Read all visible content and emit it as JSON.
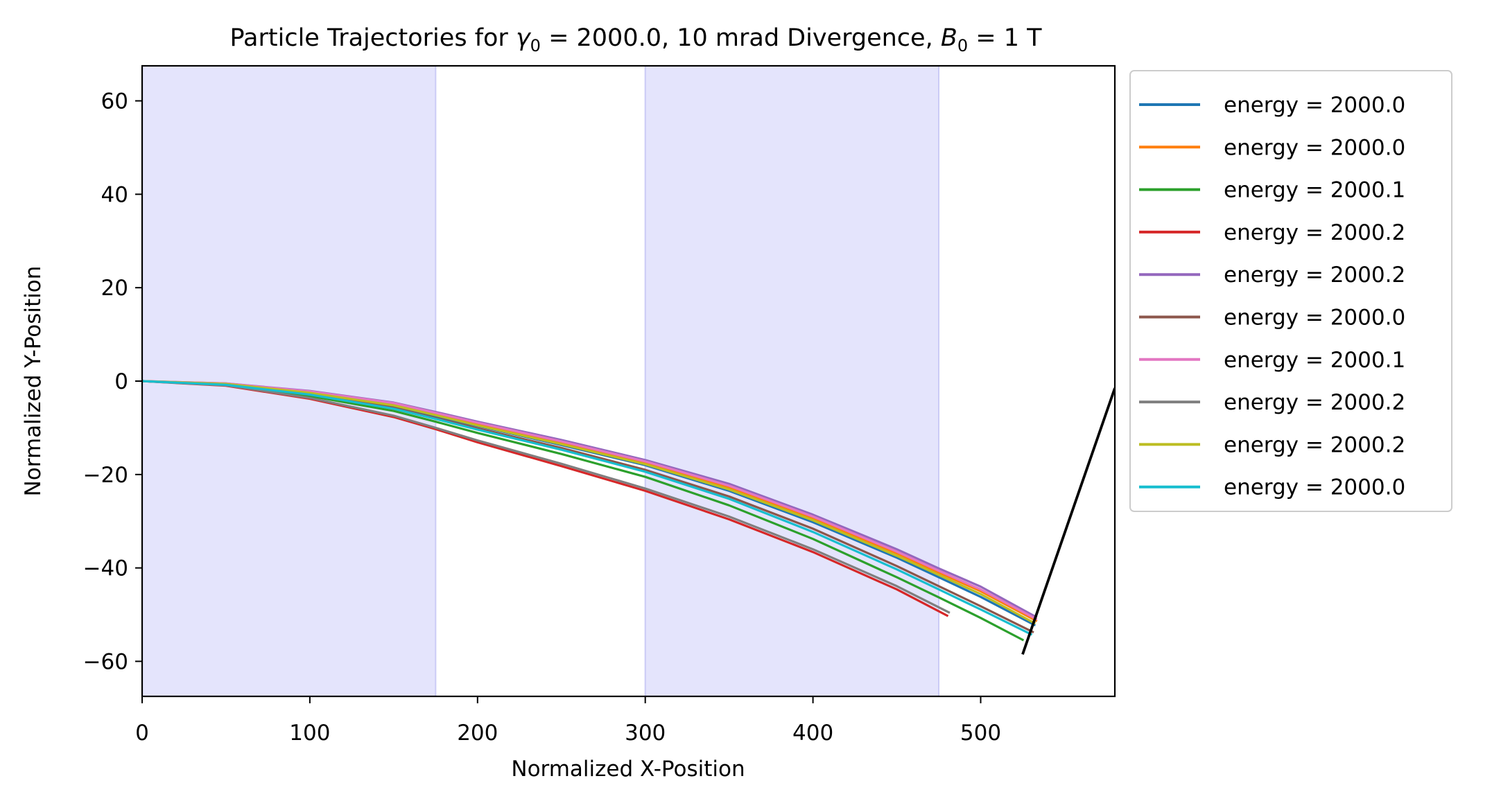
{
  "chart_data": {
    "type": "line",
    "title": {
      "prefix": "Particle Trajectories for ",
      "gamma_symbol": "γ",
      "gamma_subscript": "0",
      "gamma_value": " = 2000.0, 10 mrad Divergence, ",
      "field_symbol": "B",
      "field_subscript": "0",
      "field_value": " = 1 T"
    },
    "xlabel": "Normalized X-Position",
    "ylabel": "Normalized Y-Position",
    "xlim": [
      0,
      580
    ],
    "ylim": [
      -67.5,
      67.5
    ],
    "xticks": [
      0,
      100,
      200,
      300,
      400,
      500
    ],
    "yticks": [
      60,
      40,
      20,
      0,
      -20,
      -40,
      -60
    ],
    "grid": false,
    "legend_position": "outside-right-top",
    "shaded_regions": [
      {
        "x0": 0,
        "x1": 175,
        "color": "#e4e4fc",
        "edge": "#cbcbf6"
      },
      {
        "x0": 300,
        "x1": 475,
        "color": "#e4e4fc",
        "edge": "#cbcbf6"
      }
    ],
    "detector_line": {
      "x": [
        525,
        580
      ],
      "y": [
        -58.5,
        -1.5
      ],
      "color": "#000000"
    },
    "series": [
      {
        "name": "energy = 2000.0",
        "color": "#1f77b4",
        "x": [
          0,
          50,
          100,
          150,
          175,
          200,
          250,
          300,
          350,
          400,
          450,
          475,
          500,
          532
        ],
        "y": [
          0,
          -0.7,
          -2.6,
          -5.3,
          -7.5,
          -9.6,
          -13.7,
          -18.0,
          -23.5,
          -30.2,
          -37.8,
          -42.0,
          -46.2,
          -52.2
        ]
      },
      {
        "name": "energy = 2000.0",
        "color": "#ff7f0e",
        "x": [
          0,
          50,
          100,
          150,
          175,
          200,
          250,
          300,
          350,
          400,
          450,
          475,
          500,
          533
        ],
        "y": [
          0,
          -0.6,
          -2.4,
          -5.0,
          -7.2,
          -9.3,
          -13.3,
          -17.6,
          -22.8,
          -29.4,
          -36.9,
          -41.0,
          -45.0,
          -51.3
        ]
      },
      {
        "name": "energy = 2000.1",
        "color": "#2ca02c",
        "x": [
          0,
          50,
          100,
          150,
          175,
          200,
          250,
          300,
          350,
          400,
          450,
          475,
          500,
          525
        ],
        "y": [
          0,
          -0.8,
          -3.2,
          -6.4,
          -8.7,
          -11.1,
          -15.6,
          -20.5,
          -26.6,
          -33.8,
          -42.0,
          -46.3,
          -50.7,
          -55.4
        ]
      },
      {
        "name": "energy = 2000.2",
        "color": "#d62728",
        "x": [
          0,
          50,
          100,
          150,
          175,
          200,
          250,
          300,
          350,
          400,
          450,
          480
        ],
        "y": [
          0,
          -1.0,
          -3.8,
          -7.7,
          -10.3,
          -13.1,
          -18.2,
          -23.5,
          -29.6,
          -36.6,
          -44.6,
          -50.2
        ]
      },
      {
        "name": "energy = 2000.2",
        "color": "#9467bd",
        "x": [
          0,
          50,
          100,
          150,
          175,
          200,
          250,
          300,
          350,
          400,
          450,
          475,
          500,
          533
        ],
        "y": [
          0,
          -0.5,
          -2.1,
          -4.6,
          -6.6,
          -8.7,
          -12.6,
          -16.9,
          -22.0,
          -28.6,
          -36.0,
          -40.1,
          -44.0,
          -50.5
        ]
      },
      {
        "name": "energy = 2000.0",
        "color": "#8c564b",
        "x": [
          0,
          50,
          100,
          150,
          175,
          200,
          250,
          300,
          350,
          400,
          450,
          475,
          500,
          531
        ],
        "y": [
          0,
          -0.7,
          -2.8,
          -5.7,
          -7.9,
          -10.1,
          -14.3,
          -19.0,
          -24.7,
          -31.6,
          -39.6,
          -43.9,
          -48.2,
          -53.7
        ]
      },
      {
        "name": "energy = 2000.1",
        "color": "#e377c2",
        "x": [
          0,
          50,
          100,
          150,
          175,
          200,
          250,
          300,
          350,
          400,
          450,
          475,
          500,
          533
        ],
        "y": [
          0,
          -0.5,
          -2.2,
          -4.7,
          -6.8,
          -8.9,
          -12.9,
          -17.2,
          -22.4,
          -29.0,
          -36.5,
          -40.6,
          -44.6,
          -50.9
        ]
      },
      {
        "name": "energy = 2000.2",
        "color": "#7f7f7f",
        "x": [
          0,
          50,
          100,
          150,
          175,
          200,
          250,
          300,
          350,
          400,
          450,
          481
        ],
        "y": [
          0,
          -0.9,
          -3.6,
          -7.4,
          -10.0,
          -12.7,
          -17.7,
          -23.0,
          -29.0,
          -36.0,
          -43.9,
          -49.5
        ]
      },
      {
        "name": "energy = 2000.2",
        "color": "#bcbd22",
        "x": [
          0,
          50,
          100,
          150,
          175,
          200,
          250,
          300,
          350,
          400,
          450,
          475,
          500,
          532
        ],
        "y": [
          0,
          -0.6,
          -2.5,
          -5.2,
          -7.3,
          -9.5,
          -13.5,
          -17.8,
          -23.2,
          -29.8,
          -37.4,
          -41.5,
          -45.6,
          -51.8
        ]
      },
      {
        "name": "energy = 2000.0",
        "color": "#17becf",
        "x": [
          0,
          50,
          100,
          150,
          175,
          200,
          250,
          300,
          350,
          400,
          450,
          475,
          500,
          530
        ],
        "y": [
          0,
          -0.8,
          -2.9,
          -5.9,
          -8.1,
          -10.4,
          -14.7,
          -19.4,
          -25.2,
          -32.3,
          -40.3,
          -44.6,
          -48.9,
          -54.2
        ]
      }
    ]
  }
}
